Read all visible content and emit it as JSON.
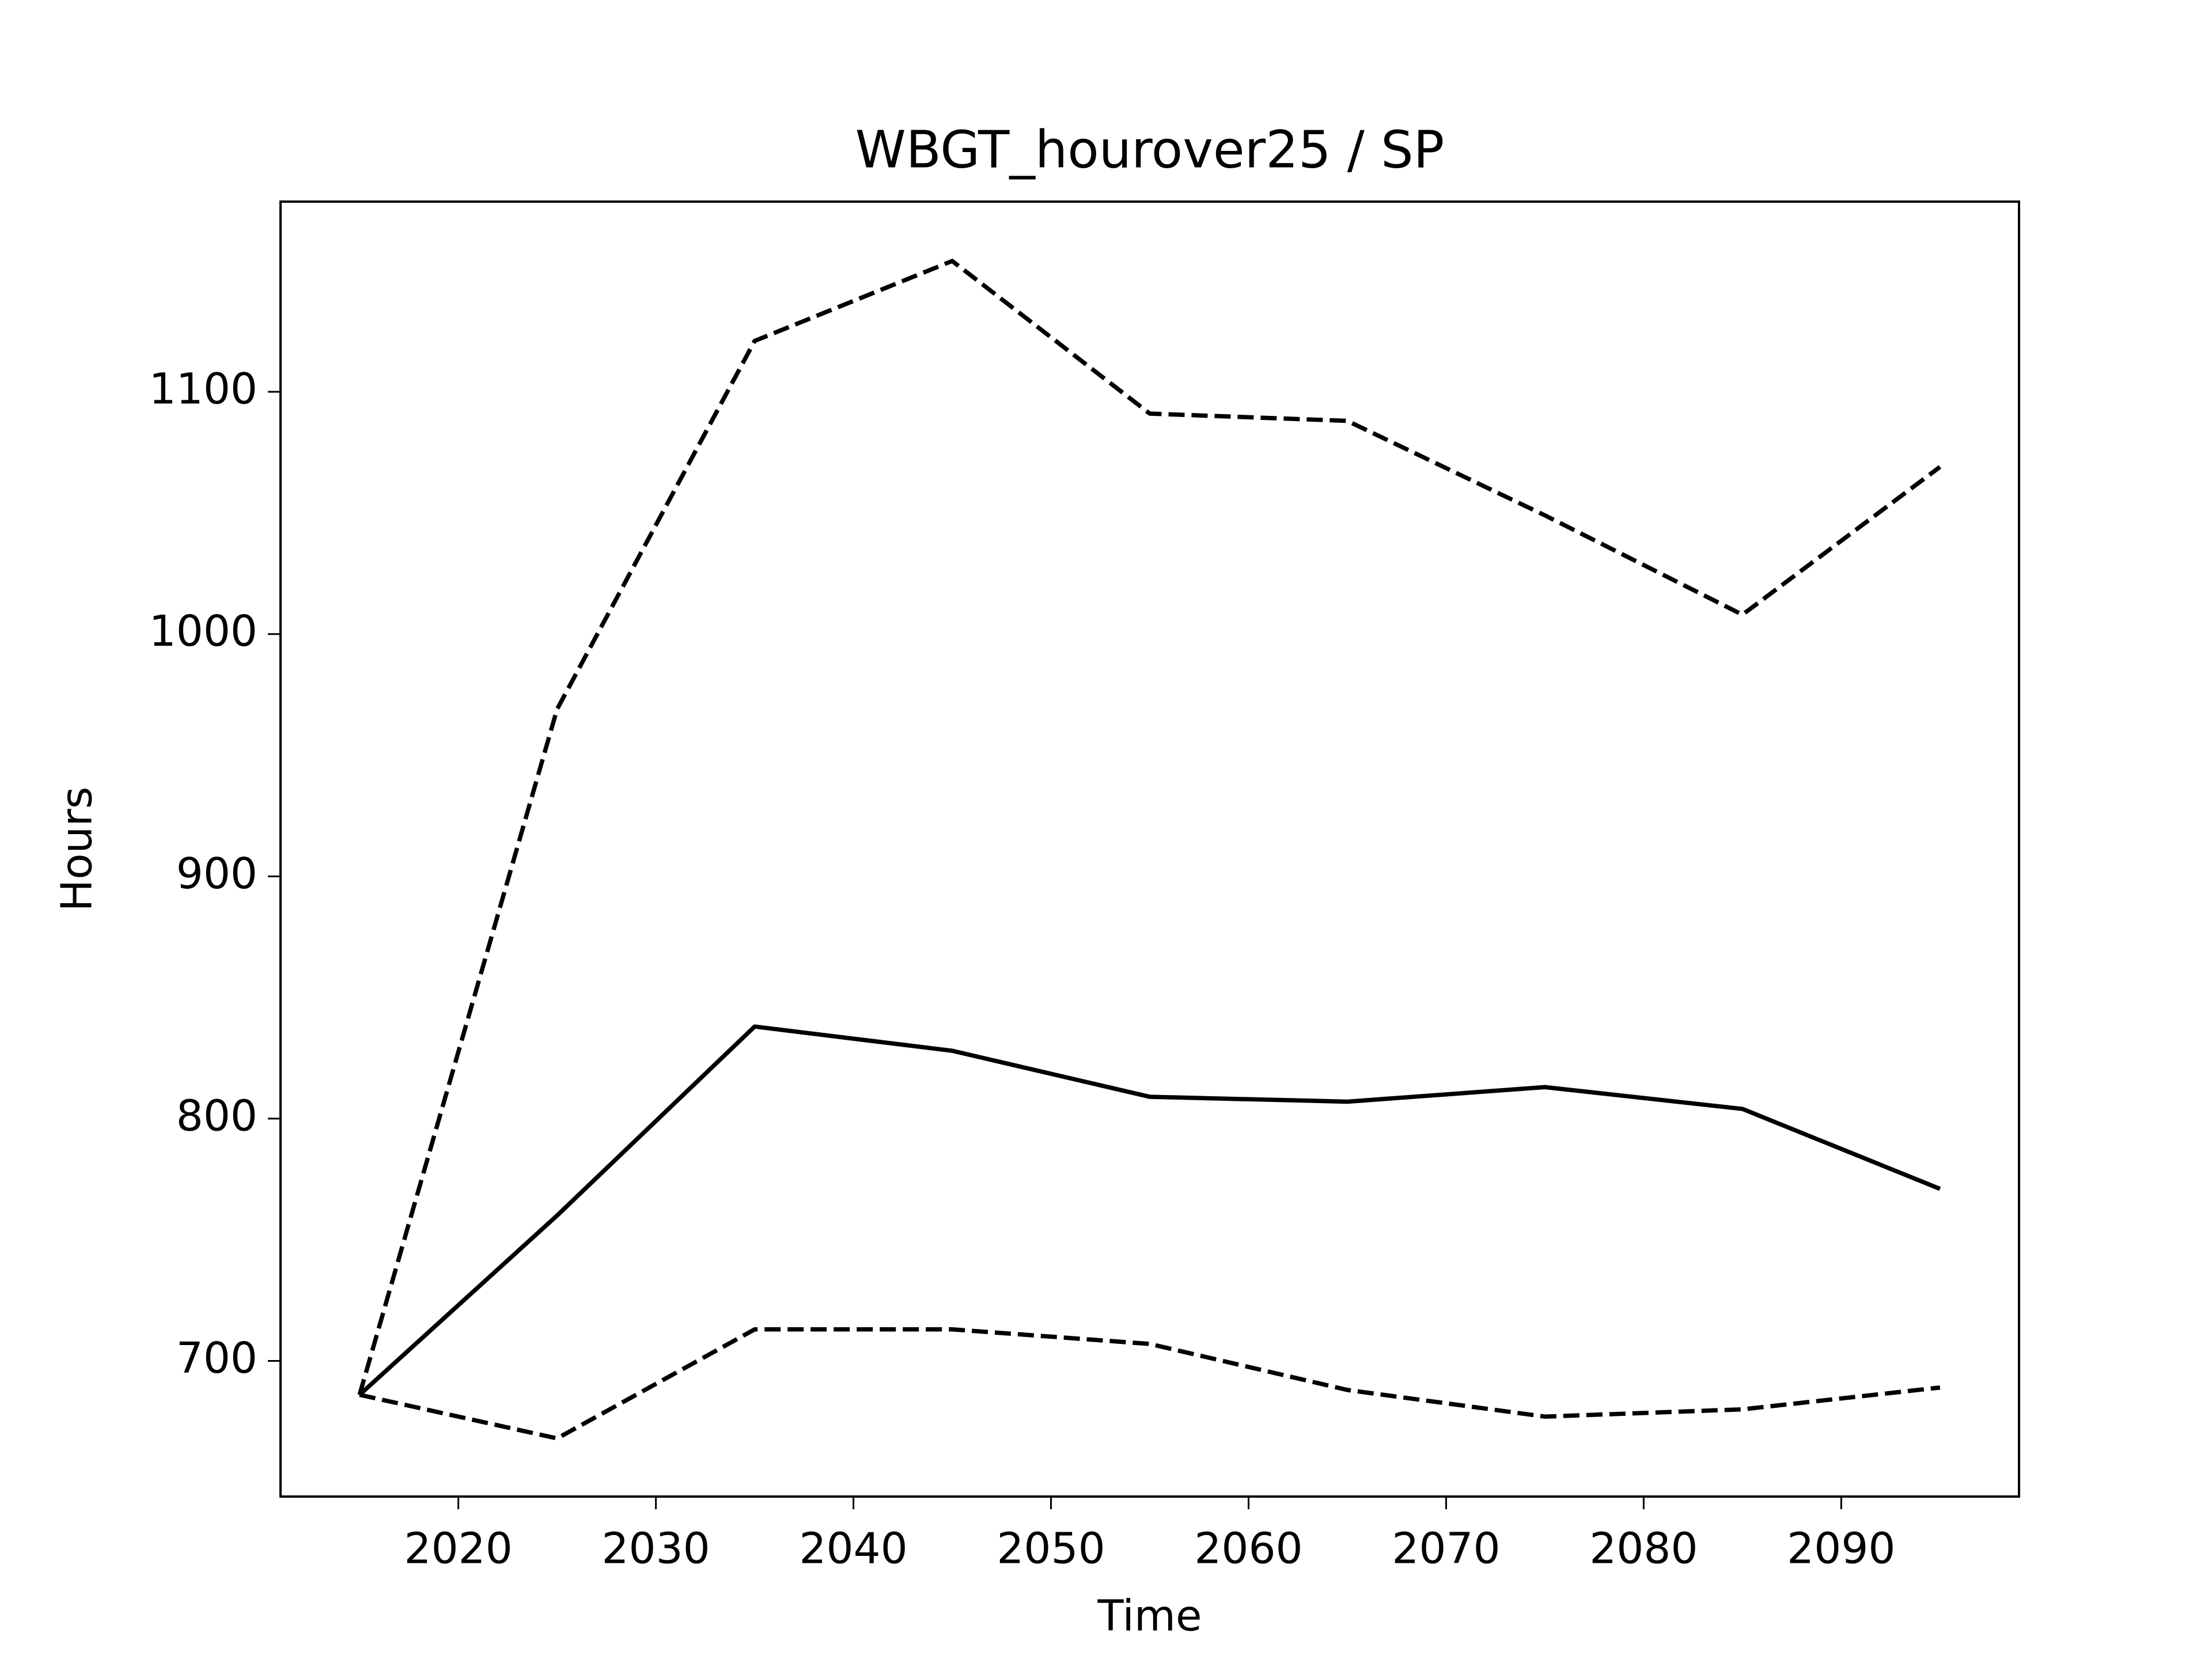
{
  "chart_data": {
    "type": "line",
    "title": "WBGT_hourover25 / SP",
    "xlabel": "Time",
    "ylabel": "Hours",
    "x": [
      2015,
      2025,
      2035,
      2045,
      2055,
      2065,
      2075,
      2085,
      2095
    ],
    "series": [
      {
        "color": "#000000",
        "linestyle": "solid",
        "values": [
          686,
          760,
          838,
          828,
          809,
          807,
          813,
          804,
          771
        ]
      },
      {
        "color": "#000000",
        "linestyle": "dashed",
        "values": [
          686,
          969,
          1121,
          1154,
          1091,
          1088,
          1049,
          1008,
          1069
        ]
      },
      {
        "color": "#000000",
        "linestyle": "dashed",
        "values": [
          686,
          668,
          713,
          713,
          707,
          688,
          677,
          680,
          689
        ]
      }
    ],
    "xlim": [
      2011,
      2099
    ],
    "ylim": [
      644,
      1178.5
    ],
    "xticks": [
      2020,
      2030,
      2040,
      2050,
      2060,
      2070,
      2080,
      2090
    ],
    "yticks": [
      700,
      800,
      900,
      1000,
      1100
    ]
  }
}
